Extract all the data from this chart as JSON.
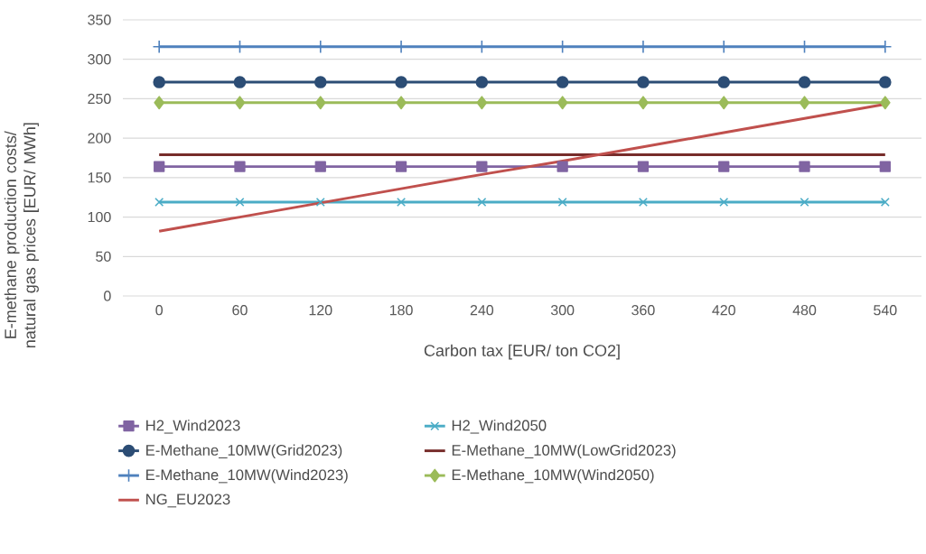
{
  "chart_data": {
    "type": "line",
    "xlabel": "Carbon tax [EUR/ ton CO2]",
    "ylabel": "E-methane production costs/ natural gas prices [EUR/ MWh]",
    "categories": [
      "0",
      "60",
      "120",
      "180",
      "240",
      "300",
      "360",
      "420",
      "480",
      "540"
    ],
    "ylim": [
      0,
      350
    ],
    "yticks": [
      0,
      50,
      100,
      150,
      200,
      250,
      300,
      350
    ],
    "grid": "y",
    "legend": "bottom",
    "series": [
      {
        "name": "H2_Wind2023",
        "color": "#8064a2",
        "marker": "square",
        "values": [
          164,
          164,
          164,
          164,
          164,
          164,
          164,
          164,
          164,
          164
        ]
      },
      {
        "name": "H2_Wind2050",
        "color": "#4bacc6",
        "marker": "cross",
        "values": [
          119,
          119,
          119,
          119,
          119,
          119,
          119,
          119,
          119,
          119
        ]
      },
      {
        "name": "E-Methane_10MW(Grid2023)",
        "color": "#2c4d75",
        "marker": "circle",
        "values": [
          271,
          271,
          271,
          271,
          271,
          271,
          271,
          271,
          271,
          271
        ]
      },
      {
        "name": "E-Methane_10MW(LowGrid2023)",
        "color": "#772c2a",
        "marker": "none",
        "values": [
          179,
          179,
          179,
          179,
          179,
          179,
          179,
          179,
          179,
          179
        ]
      },
      {
        "name": "E-Methane_10MW(Wind2023)",
        "color": "#4f81bd",
        "marker": "plus",
        "values": [
          316,
          316,
          316,
          316,
          316,
          316,
          316,
          316,
          316,
          316
        ]
      },
      {
        "name": "E-Methane_10MW(Wind2050)",
        "color": "#9bbb59",
        "marker": "diamond",
        "values": [
          245,
          245,
          245,
          245,
          245,
          245,
          245,
          245,
          245,
          245
        ]
      },
      {
        "name": "NG_EU2023",
        "color": "#c0504d",
        "marker": "none",
        "values": [
          82,
          100,
          118,
          136,
          154,
          171,
          189,
          207,
          225,
          243
        ]
      }
    ]
  }
}
